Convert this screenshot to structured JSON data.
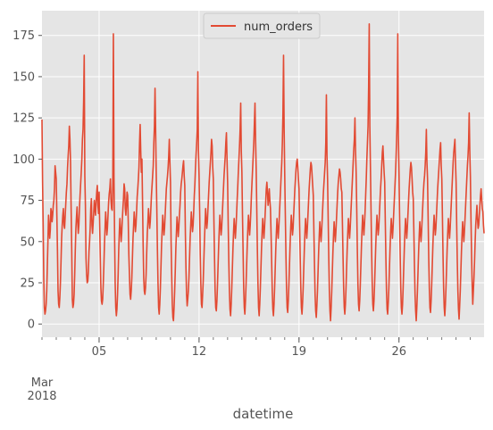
{
  "chart_data": {
    "type": "line",
    "title": "",
    "xlabel": "datetime",
    "ylabel": "",
    "xlim": [
      "2018-03-01",
      "2018-03-31T23:00"
    ],
    "ylim": [
      -8,
      190
    ],
    "yticks": [
      0,
      25,
      50,
      75,
      100,
      125,
      150,
      175
    ],
    "xticks": [
      {
        "date": "2018-03-05",
        "label": "05"
      },
      {
        "date": "2018-03-12",
        "label": "12"
      },
      {
        "date": "2018-03-19",
        "label": "19"
      },
      {
        "date": "2018-03-26",
        "label": "26"
      }
    ],
    "x_month_label": "Mar",
    "x_year_label": "2018",
    "grid": true,
    "legend": {
      "position": "top-center"
    },
    "colors": {
      "line": "#E24A33",
      "background": "#E5E5E5",
      "grid": "#FFFFFF"
    },
    "series": [
      {
        "name": "num_orders",
        "x_start": "2018-03-01T00:00",
        "x_step": "1 hour",
        "values": [
          124,
          86,
          60,
          28,
          10,
          6,
          8,
          12,
          20,
          35,
          50,
          66,
          60,
          52,
          57,
          70,
          68,
          62,
          66,
          72,
          75,
          82,
          96,
          92,
          88,
          66,
          45,
          20,
          12,
          10,
          16,
          25,
          38,
          52,
          60,
          66,
          70,
          60,
          58,
          65,
          73,
          80,
          85,
          95,
          102,
          108,
          120,
          112,
          98,
          70,
          45,
          15,
          10,
          12,
          18,
          30,
          45,
          58,
          65,
          71,
          62,
          55,
          60,
          70,
          78,
          85,
          92,
          100,
          112,
          118,
          135,
          163,
          90,
          72,
          40,
          30,
          25,
          26,
          32,
          44,
          50,
          58,
          70,
          76,
          60,
          55,
          61,
          68,
          75,
          70,
          66,
          74,
          80,
          84,
          72,
          67,
          80,
          60,
          40,
          22,
          14,
          12,
          15,
          24,
          35,
          48,
          58,
          68,
          62,
          54,
          58,
          66,
          74,
          79,
          82,
          88,
          75,
          70,
          69,
          84,
          176,
          90,
          55,
          25,
          10,
          5,
          9,
          18,
          30,
          45,
          56,
          64,
          58,
          50,
          55,
          63,
          70,
          76,
          85,
          82,
          70,
          66,
          72,
          80,
          78,
          62,
          42,
          30,
          18,
          15,
          20,
          28,
          40,
          52,
          60,
          68,
          63,
          56,
          60,
          68,
          77,
          82,
          88,
          95,
          110,
          121,
          105,
          92,
          100,
          75,
          48,
          28,
          20,
          18,
          22,
          30,
          43,
          55,
          62,
          70,
          64,
          58,
          62,
          70,
          78,
          84,
          90,
          96,
          110,
          120,
          143,
          118,
          92,
          70,
          45,
          25,
          10,
          6,
          12,
          22,
          35,
          48,
          57,
          66,
          60,
          54,
          58,
          66,
          74,
          82,
          86,
          90,
          95,
          102,
          112,
          98,
          86,
          50,
          30,
          12,
          4,
          2,
          10,
          20,
          32,
          46,
          56,
          65,
          60,
          53,
          58,
          66,
          72,
          80,
          85,
          88,
          92,
          96,
          99,
          90,
          84,
          55,
          34,
          18,
          11,
          15,
          20,
          28,
          40,
          52,
          60,
          68,
          62,
          56,
          60,
          68,
          78,
          85,
          95,
          103,
          110,
          118,
          153,
          105,
          90,
          68,
          42,
          24,
          12,
          10,
          18,
          26,
          38,
          50,
          60,
          70,
          64,
          58,
          62,
          70,
          78,
          86,
          92,
          98,
          104,
          112,
          108,
          95,
          88,
          62,
          40,
          20,
          10,
          8,
          14,
          24,
          36,
          48,
          58,
          66,
          60,
          54,
          58,
          66,
          74,
          82,
          90,
          96,
          102,
          110,
          116,
          100,
          86,
          60,
          38,
          20,
          9,
          5,
          12,
          22,
          34,
          46,
          56,
          64,
          58,
          52,
          58,
          66,
          75,
          83,
          92,
          100,
          108,
          118,
          134,
          105,
          92,
          66,
          44,
          22,
          10,
          6,
          14,
          24,
          36,
          48,
          58,
          66,
          60,
          54,
          60,
          68,
          78,
          86,
          94,
          102,
          110,
          122,
          134,
          112,
          94,
          70,
          45,
          24,
          10,
          5,
          12,
          22,
          34,
          46,
          56,
          64,
          58,
          52,
          58,
          66,
          74,
          82,
          86,
          80,
          72,
          76,
          82,
          75,
          70,
          55,
          38,
          20,
          9,
          5,
          12,
          22,
          34,
          46,
          56,
          64,
          58,
          52,
          58,
          66,
          74,
          82,
          90,
          98,
          110,
          128,
          163,
          118,
          90,
          66,
          42,
          22,
          10,
          7,
          14,
          24,
          36,
          48,
          58,
          66,
          60,
          54,
          58,
          66,
          74,
          82,
          88,
          94,
          98,
          100,
          95,
          88,
          82,
          60,
          40,
          22,
          10,
          6,
          13,
          22,
          34,
          46,
          56,
          64,
          58,
          52,
          58,
          66,
          74,
          82,
          88,
          94,
          98,
          96,
          90,
          84,
          78,
          56,
          36,
          18,
          8,
          4,
          11,
          20,
          32,
          44,
          54,
          62,
          56,
          50,
          56,
          64,
          72,
          80,
          86,
          92,
          98,
          110,
          139,
          102,
          88,
          64,
          40,
          20,
          8,
          2,
          10,
          20,
          32,
          44,
          54,
          62,
          56,
          50,
          56,
          64,
          72,
          80,
          86,
          90,
          94,
          92,
          88,
          82,
          80,
          60,
          40,
          22,
          10,
          6,
          12,
          22,
          34,
          46,
          56,
          64,
          58,
          52,
          58,
          66,
          74,
          82,
          90,
          98,
          106,
          112,
          125,
          105,
          92,
          70,
          45,
          24,
          12,
          8,
          14,
          24,
          36,
          48,
          58,
          66,
          60,
          54,
          60,
          68,
          78,
          88,
          100,
          110,
          120,
          144,
          182,
          120,
          96,
          70,
          45,
          25,
          12,
          8,
          14,
          24,
          36,
          48,
          58,
          66,
          60,
          54,
          58,
          66,
          74,
          82,
          88,
          96,
          104,
          108,
          100,
          92,
          86,
          62,
          40,
          20,
          9,
          6,
          13,
          22,
          34,
          46,
          56,
          64,
          58,
          52,
          58,
          66,
          74,
          82,
          90,
          100,
          112,
          126,
          176,
          115,
          92,
          66,
          42,
          22,
          10,
          6,
          12,
          22,
          34,
          46,
          56,
          64,
          58,
          52,
          58,
          66,
          74,
          82,
          88,
          94,
          98,
          95,
          88,
          80,
          76,
          56,
          36,
          18,
          8,
          2,
          10,
          20,
          32,
          44,
          54,
          62,
          56,
          50,
          56,
          64,
          72,
          80,
          86,
          90,
          96,
          104,
          118,
          98,
          88,
          64,
          40,
          22,
          10,
          7,
          14,
          24,
          36,
          48,
          58,
          66,
          60,
          54,
          58,
          66,
          74,
          82,
          88,
          94,
          100,
          106,
          110,
          96,
          88,
          66,
          42,
          22,
          10,
          5,
          12,
          22,
          34,
          46,
          56,
          64,
          58,
          52,
          58,
          66,
          74,
          82,
          90,
          98,
          104,
          108,
          112,
          98,
          86,
          60,
          38,
          20,
          9,
          3,
          11,
          20,
          32,
          44,
          54,
          62,
          56,
          50,
          56,
          64,
          72,
          80,
          88,
          96,
          102,
          110,
          128,
          105,
          90,
          64,
          42,
          24,
          12,
          20,
          28,
          38,
          50,
          60,
          66,
          72,
          64,
          58,
          60,
          66,
          72,
          78,
          82,
          76,
          70,
          68,
          60,
          55
        ]
      }
    ]
  }
}
